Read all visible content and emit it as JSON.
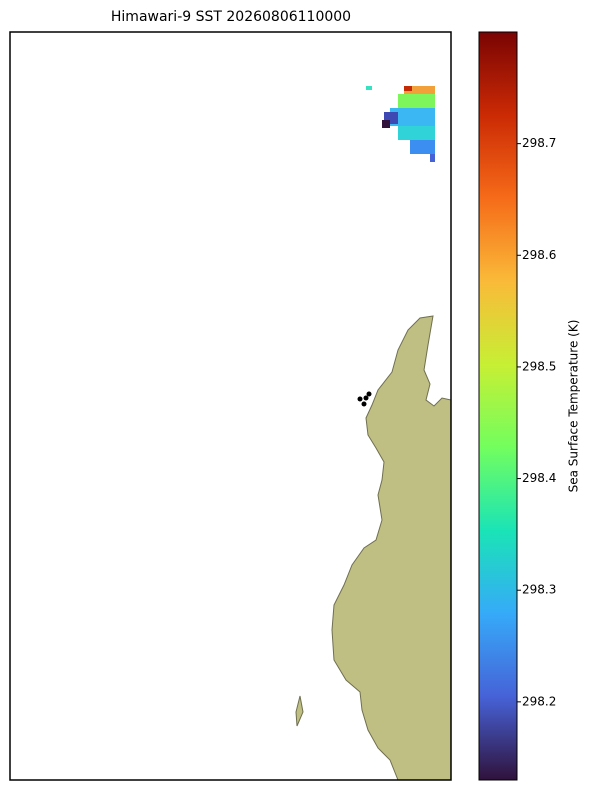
{
  "map": {
    "title": "Himawari-9 SST 20260806110000",
    "colorbar": {
      "label": "Sea Surface Temperature (K)",
      "lim": [
        298.13,
        298.8
      ],
      "ticks": [
        298.2,
        298.3,
        298.4,
        298.5,
        298.6,
        298.7
      ],
      "colors": [
        "#30123b",
        "#4662d7",
        "#36aaf9",
        "#1ae4b6",
        "#72fe5e",
        "#c7ef34",
        "#faba39",
        "#f66b19",
        "#cb2a04",
        "#7a0403"
      ]
    }
  }
}
